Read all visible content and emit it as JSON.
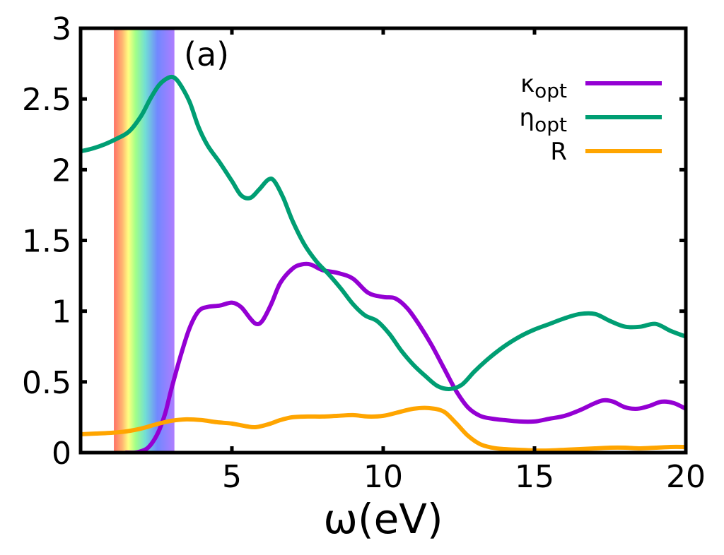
{
  "chart_data": {
    "type": "line",
    "panel_label": "(a)",
    "xlabel": "ω(eV)",
    "ylabel": "",
    "xlim": [
      0,
      20
    ],
    "ylim": [
      0,
      3
    ],
    "x_ticks": [
      5,
      10,
      15,
      20
    ],
    "x_tick_labels": [
      "5",
      "10",
      "15",
      "20"
    ],
    "y_ticks": [
      0,
      0.5,
      1,
      1.5,
      2,
      2.5,
      3
    ],
    "y_tick_labels": [
      "0",
      "0.5",
      "1",
      "1.5",
      "2",
      "2.5",
      "3"
    ],
    "grid": false,
    "legend_position": "top-right",
    "visible_spectrum_band": [
      1.1,
      3.1
    ],
    "series": [
      {
        "name": "κopt",
        "label_main": "κ",
        "label_sub": "opt",
        "color": "#9400d3",
        "x": [
          1.5,
          1.8,
          2.0,
          2.2,
          2.4,
          2.6,
          2.8,
          3.0,
          3.3,
          3.6,
          3.9,
          4.2,
          4.6,
          5.0,
          5.3,
          5.6,
          5.8,
          6.0,
          6.3,
          6.6,
          7.0,
          7.3,
          7.6,
          8.0,
          8.5,
          9.0,
          9.5,
          10.0,
          10.4,
          10.8,
          11.2,
          11.6,
          12.0,
          12.4,
          12.8,
          13.2,
          13.6,
          14.0,
          14.5,
          15.0,
          15.5,
          16.0,
          16.5,
          17.0,
          17.3,
          17.6,
          18.0,
          18.4,
          18.8,
          19.2,
          19.6,
          20.0
        ],
        "y": [
          0.0,
          0.0,
          0.01,
          0.03,
          0.08,
          0.16,
          0.28,
          0.45,
          0.68,
          0.88,
          1.0,
          1.03,
          1.04,
          1.06,
          1.03,
          0.95,
          0.91,
          0.93,
          1.05,
          1.2,
          1.3,
          1.33,
          1.33,
          1.29,
          1.27,
          1.23,
          1.13,
          1.1,
          1.09,
          1.02,
          0.9,
          0.76,
          0.6,
          0.44,
          0.32,
          0.26,
          0.24,
          0.23,
          0.22,
          0.22,
          0.24,
          0.26,
          0.3,
          0.35,
          0.37,
          0.36,
          0.32,
          0.31,
          0.33,
          0.36,
          0.35,
          0.31
        ]
      },
      {
        "name": "ηopt",
        "label_main": "η",
        "label_sub": "opt",
        "color": "#009e73",
        "x": [
          0.0,
          0.4,
          0.8,
          1.2,
          1.6,
          2.0,
          2.3,
          2.6,
          2.9,
          3.1,
          3.3,
          3.6,
          3.9,
          4.2,
          4.6,
          5.0,
          5.3,
          5.6,
          5.9,
          6.2,
          6.4,
          6.7,
          7.0,
          7.4,
          7.8,
          8.2,
          8.6,
          9.0,
          9.4,
          9.8,
          10.2,
          10.6,
          11.0,
          11.4,
          11.8,
          12.2,
          12.6,
          13.0,
          13.4,
          13.8,
          14.2,
          14.6,
          15.0,
          15.5,
          16.0,
          16.5,
          17.0,
          17.5,
          18.0,
          18.5,
          19.0,
          19.5,
          20.0
        ],
        "y": [
          2.13,
          2.15,
          2.18,
          2.22,
          2.27,
          2.38,
          2.5,
          2.6,
          2.65,
          2.65,
          2.6,
          2.48,
          2.3,
          2.17,
          2.05,
          1.92,
          1.82,
          1.8,
          1.86,
          1.93,
          1.92,
          1.8,
          1.64,
          1.47,
          1.35,
          1.26,
          1.16,
          1.05,
          0.97,
          0.93,
          0.84,
          0.72,
          0.62,
          0.54,
          0.47,
          0.45,
          0.48,
          0.57,
          0.65,
          0.72,
          0.78,
          0.83,
          0.87,
          0.91,
          0.95,
          0.98,
          0.98,
          0.93,
          0.89,
          0.89,
          0.91,
          0.86,
          0.82
        ]
      },
      {
        "name": "R",
        "label_main": "R",
        "label_sub": "",
        "color": "#ffa500",
        "x": [
          0.0,
          0.5,
          1.0,
          1.5,
          2.0,
          2.5,
          3.0,
          3.5,
          4.0,
          4.5,
          5.0,
          5.5,
          5.8,
          6.2,
          6.6,
          7.0,
          7.5,
          8.0,
          8.5,
          9.0,
          9.5,
          10.0,
          10.5,
          11.0,
          11.5,
          12.0,
          12.4,
          12.8,
          13.2,
          13.6,
          14.0,
          14.5,
          15.0,
          15.5,
          16.0,
          16.5,
          17.0,
          17.5,
          18.0,
          18.5,
          19.0,
          19.5,
          20.0
        ],
        "y": [
          0.13,
          0.135,
          0.14,
          0.15,
          0.17,
          0.2,
          0.225,
          0.235,
          0.23,
          0.215,
          0.205,
          0.185,
          0.18,
          0.2,
          0.23,
          0.25,
          0.255,
          0.255,
          0.26,
          0.265,
          0.255,
          0.26,
          0.285,
          0.31,
          0.315,
          0.29,
          0.21,
          0.12,
          0.06,
          0.035,
          0.025,
          0.02,
          0.015,
          0.015,
          0.02,
          0.025,
          0.03,
          0.035,
          0.035,
          0.03,
          0.035,
          0.04,
          0.04
        ]
      }
    ]
  }
}
